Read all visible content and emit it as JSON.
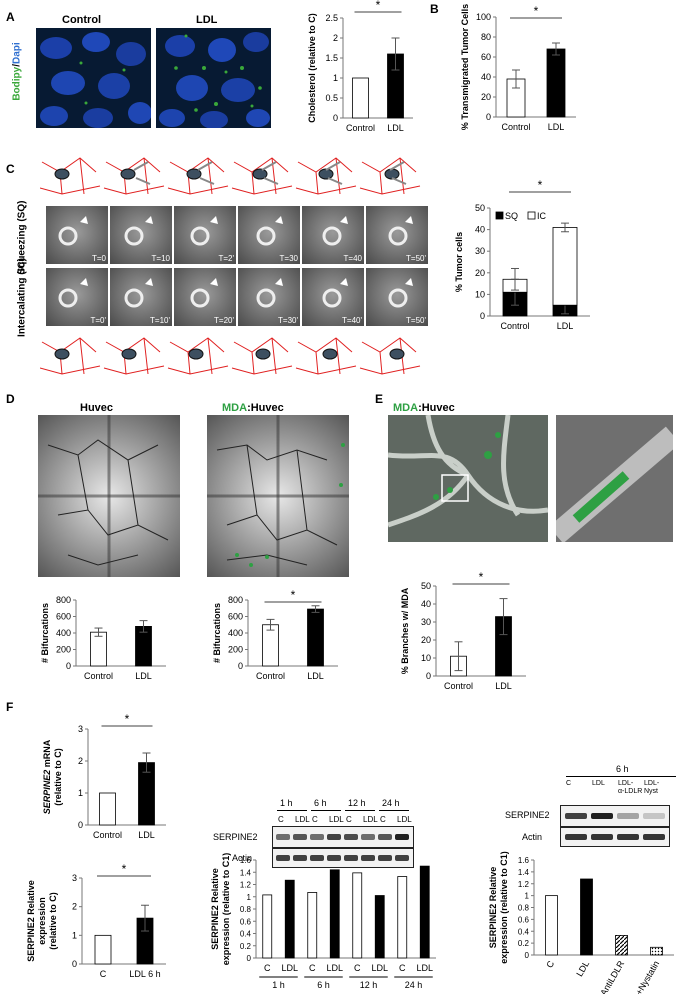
{
  "panels": [
    "A",
    "B",
    "C",
    "D",
    "E",
    "F"
  ],
  "panel_a": {
    "stain_bodipy": "Bodipy",
    "stain_sep": "/",
    "stain_dapi": "Dapi",
    "control_label": "Control",
    "ldl_label": "LDL"
  },
  "panel_c": {
    "sq_label": "Squeezing (SQ)",
    "ic_label": "Intercalating (IC)",
    "sq_times": [
      "T=0",
      "T=10",
      "T=2'",
      "T=30",
      "T=40",
      "T=50'"
    ],
    "ic_times": [
      "T=0'",
      "T=10'",
      "T=20'",
      "T=30'",
      "T=40'",
      "T=50'"
    ]
  },
  "panel_d": {
    "huvec_label": "Huvec",
    "mda_label": "MDA",
    "huvec_suffix": ":Huvec"
  },
  "panel_e": {
    "mda_label": "MDA",
    "huvec_suffix": ":Huvec"
  },
  "panel_f": {
    "blot1": {
      "times": [
        "1 h",
        "6 h",
        "12 h",
        "24 h"
      ],
      "lane_labels": [
        "C",
        "LDL",
        "C",
        "LDL",
        "C",
        "LDL",
        "C",
        "LDL"
      ],
      "rows": [
        "SERPINE2",
        "Actin"
      ]
    },
    "blot2": {
      "time": "6 h",
      "lane_labels": [
        "C",
        "LDL",
        "LDL-\nα-LDLR",
        "LDL-\nNyst"
      ],
      "rows": [
        "SERPINE2",
        "Actin"
      ]
    }
  },
  "colors": {
    "bar_filled": "#000000",
    "bar_open": "#ffffff",
    "axis": "#777777",
    "bodipy_green": "#3aa83a",
    "dapi_blue": "#2f6fd0",
    "mda_green": "#2ea043",
    "cell_outline_red": "#e02020"
  },
  "chart_data": [
    {
      "id": "A-cholesterol",
      "type": "bar",
      "categories": [
        "Control",
        "LDL"
      ],
      "values": [
        1.0,
        1.6
      ],
      "errors": [
        0,
        0.4
      ],
      "fills": [
        "open",
        "filled"
      ],
      "ylabel": "Cholesterol (relative to C)",
      "ylim": [
        0,
        2.5
      ],
      "yticks": [
        0,
        0.5,
        1,
        1.5,
        2,
        2.5
      ],
      "significance": "*"
    },
    {
      "id": "B-transmigration",
      "type": "bar",
      "categories": [
        "Control",
        "LDL"
      ],
      "values": [
        38,
        68
      ],
      "errors": [
        9,
        6
      ],
      "fills": [
        "open",
        "filled"
      ],
      "ylabel": "% Transmigrated Tumor Cells",
      "ylim": [
        0,
        100
      ],
      "yticks": [
        0,
        20,
        40,
        60,
        80,
        100
      ],
      "significance": "*"
    },
    {
      "id": "C-stacked",
      "type": "bar",
      "stacked": true,
      "categories": [
        "Control",
        "LDL"
      ],
      "series": [
        {
          "name": "SQ",
          "values": [
            11,
            5
          ],
          "errors": [
            6,
            4
          ],
          "fill": "filled"
        },
        {
          "name": "IC",
          "values": [
            6,
            36
          ],
          "errors": [
            5,
            2
          ],
          "fill": "open"
        }
      ],
      "ylabel": "% Tumor cells",
      "ylim": [
        0,
        50
      ],
      "yticks": [
        0,
        10,
        20,
        30,
        40,
        50
      ],
      "legend": "top-left",
      "significance": "*"
    },
    {
      "id": "D-huvec",
      "type": "bar",
      "categories": [
        "Control",
        "LDL"
      ],
      "values": [
        410,
        480
      ],
      "errors": [
        50,
        70
      ],
      "fills": [
        "open",
        "filled"
      ],
      "ylabel": "# Bifurcations",
      "ylim": [
        0,
        800
      ],
      "yticks": [
        0,
        200,
        400,
        600,
        800
      ]
    },
    {
      "id": "D-mda",
      "type": "bar",
      "categories": [
        "Control",
        "LDL"
      ],
      "values": [
        500,
        690
      ],
      "errors": [
        65,
        40
      ],
      "fills": [
        "open",
        "filled"
      ],
      "ylabel": "# Bifurcations",
      "ylim": [
        0,
        800
      ],
      "yticks": [
        0,
        200,
        400,
        600,
        800
      ],
      "significance": "*"
    },
    {
      "id": "E-branches",
      "type": "bar",
      "categories": [
        "Control",
        "LDL"
      ],
      "values": [
        11,
        33
      ],
      "errors": [
        8,
        10
      ],
      "fills": [
        "open",
        "filled"
      ],
      "ylabel": "% Branches w/ MDA",
      "ylim": [
        0,
        50
      ],
      "yticks": [
        0,
        10,
        20,
        30,
        40,
        50
      ],
      "significance": "*"
    },
    {
      "id": "F-mrna",
      "type": "bar",
      "categories": [
        "Control",
        "LDL"
      ],
      "values": [
        1.0,
        1.95
      ],
      "errors": [
        0,
        0.3
      ],
      "fills": [
        "open",
        "filled"
      ],
      "ylabel_italic": "SERPINE2",
      "ylabel_rest": " mRNA",
      "ylabel2": "(relative to C)",
      "ylim": [
        0,
        3
      ],
      "yticks": [
        0,
        1,
        2,
        3
      ],
      "significance": "*"
    },
    {
      "id": "F-protein",
      "type": "bar",
      "categories": [
        "C",
        "LDL 6 h"
      ],
      "values": [
        1.0,
        1.6
      ],
      "errors": [
        0,
        0.45
      ],
      "fills": [
        "open",
        "filled"
      ],
      "ylabel": "SERPINE2 Relative",
      "ylabel2": "expression",
      "ylabel3": "(relative to C)",
      "ylim": [
        0,
        3
      ],
      "yticks": [
        0,
        1,
        2,
        3
      ],
      "significance": "*"
    },
    {
      "id": "F-timecourse",
      "type": "bar",
      "categories": [
        "C",
        "LDL",
        "C",
        "LDL",
        "C",
        "LDL",
        "C",
        "LDL"
      ],
      "groups": [
        "1 h",
        "6 h",
        "12 h",
        "24 h"
      ],
      "values": [
        1.03,
        1.27,
        1.07,
        1.44,
        1.39,
        1.02,
        1.33,
        1.5
      ],
      "fills": [
        "open",
        "filled",
        "open",
        "filled",
        "open",
        "filled",
        "open",
        "filled"
      ],
      "ylabel": "SERPINE2 Relative",
      "ylabel2": "expression (relative to C1)",
      "ylim": [
        0,
        1.6
      ],
      "yticks": [
        0,
        0.2,
        0.4,
        0.6,
        0.8,
        1,
        1.2,
        1.4,
        1.6
      ]
    },
    {
      "id": "F-inhibitors",
      "type": "bar",
      "categories": [
        "C",
        "LDL",
        "LDL+AntiLDLR",
        "LDL+Nystatin"
      ],
      "values": [
        1.0,
        1.28,
        0.33,
        0.13
      ],
      "fills": [
        "open",
        "filled",
        "hatched",
        "dotted"
      ],
      "ylabel": "SERPINE2 Relative",
      "ylabel2": "expression (relative to C1)",
      "ylim": [
        0,
        1.6
      ],
      "yticks": [
        0,
        0.2,
        0.4,
        0.6,
        0.8,
        1,
        1.2,
        1.4,
        1.6
      ]
    }
  ]
}
